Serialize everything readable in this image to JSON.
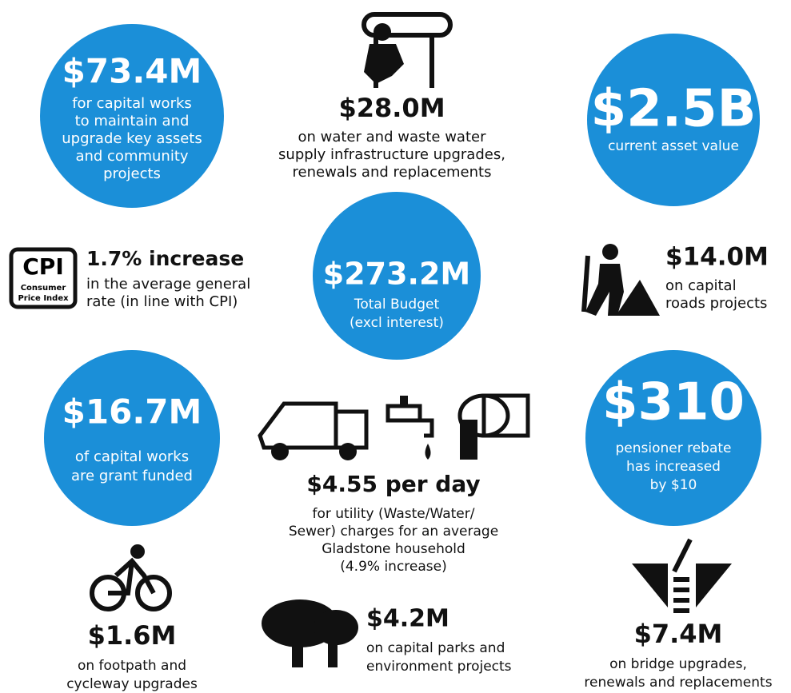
{
  "cpi_badge": {
    "title": "CPI",
    "lines": [
      "Consumer",
      "Price Index"
    ]
  },
  "items": [
    {
      "headline": "$73.4M",
      "lines": [
        "for capital works",
        "to maintain and",
        "upgrade key assets",
        "and community",
        "projects"
      ]
    },
    {
      "headline": "$28.0M",
      "lines": [
        "on water and waste water",
        "supply infrastructure upgrades,",
        "renewals and replacements"
      ]
    },
    {
      "headline": "$2.5B",
      "lines": [
        "current asset value"
      ]
    },
    {
      "headline": "1.7% increase",
      "lines": [
        "in the average general",
        "rate (in line with CPI)"
      ]
    },
    {
      "headline": "$273.2M",
      "lines": [
        "Total Budget",
        "(excl interest)"
      ]
    },
    {
      "headline": "$14.0M",
      "lines": [
        "on capital",
        "roads projects"
      ]
    },
    {
      "headline": "$16.7M",
      "lines": [
        "of capital works",
        "are grant funded"
      ]
    },
    {
      "headline": "$4.55 per day",
      "lines": [
        "for utility (Waste/Water/",
        "Sewer) charges for an average",
        "Gladstone household",
        "(4.9% increase)"
      ]
    },
    {
      "headline": "$310",
      "lines": [
        "pensioner rebate",
        "has increased",
        "by $10"
      ]
    },
    {
      "headline": "$1.6M",
      "lines": [
        "on footpath and",
        "cycleway upgrades"
      ]
    },
    {
      "headline": "$4.2M",
      "lines": [
        "on capital parks and",
        "environment projects"
      ]
    },
    {
      "headline": "$7.4M",
      "lines": [
        "on bridge upgrades,",
        "renewals and replacements"
      ]
    }
  ]
}
